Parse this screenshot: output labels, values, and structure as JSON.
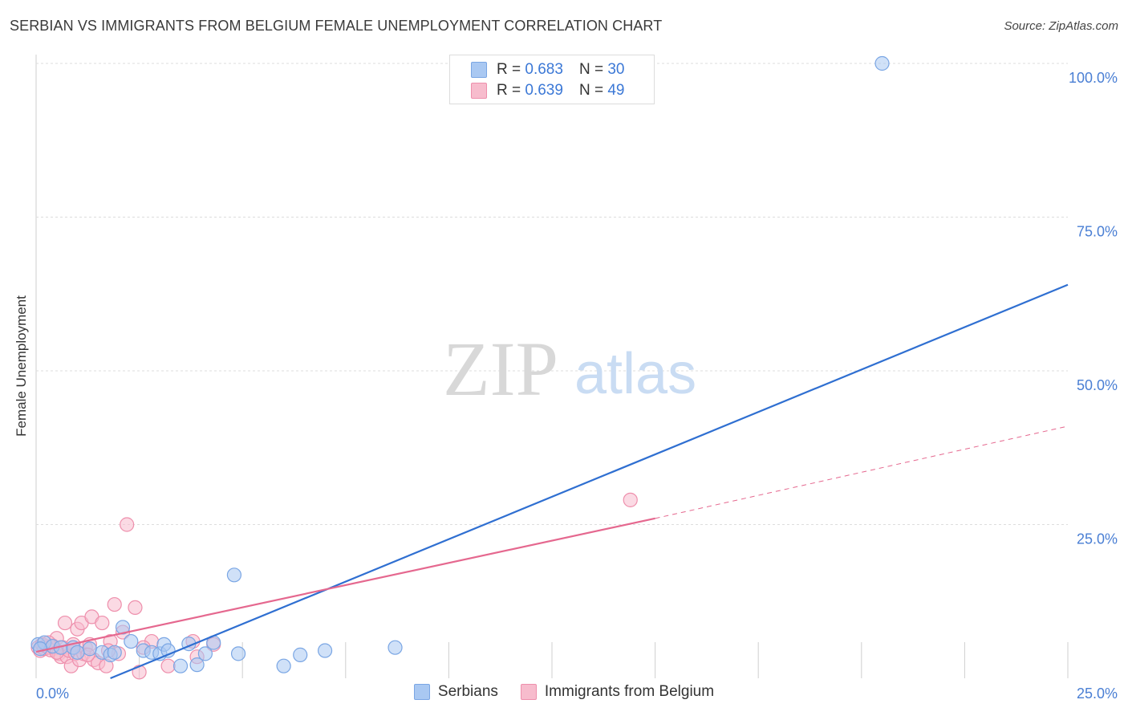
{
  "header": {
    "title": "SERBIAN VS IMMIGRANTS FROM BELGIUM FEMALE UNEMPLOYMENT CORRELATION CHART",
    "source": "Source: ZipAtlas.com"
  },
  "watermark": {
    "zip": "ZIP",
    "atlas": "atlas"
  },
  "legend": {
    "rows": [
      {
        "r_label": "R =",
        "r_value": "0.683",
        "n_label": "N =",
        "n_value": "30"
      },
      {
        "r_label": "R =",
        "r_value": "0.639",
        "n_label": "N =",
        "n_value": "49"
      }
    ]
  },
  "colors": {
    "blue_fill": "#a9c8f2",
    "blue_stroke": "#7aa6e4",
    "blue_line": "#2f6fd1",
    "pink_fill": "#f7bccd",
    "pink_stroke": "#ee8fac",
    "pink_line": "#e5688f",
    "grid": "#dddddd",
    "tick_text": "#4a7fd4"
  },
  "chart_data": {
    "type": "scatter",
    "title": "SERBIAN VS IMMIGRANTS FROM BELGIUM FEMALE UNEMPLOYMENT CORRELATION CHART",
    "xlabel": "",
    "ylabel": "Female Unemployment",
    "xlim": [
      0,
      25
    ],
    "ylim": [
      0,
      100
    ],
    "x_tick_labels": [
      "0.0%",
      "25.0%"
    ],
    "y_tick_labels": [
      "25.0%",
      "50.0%",
      "75.0%",
      "100.0%"
    ],
    "y_ticks": [
      25,
      50,
      75,
      100
    ],
    "grid": true,
    "legend_position": "top-center",
    "series": [
      {
        "name": "Serbians",
        "r": 0.683,
        "n": 30,
        "points": [
          [
            0.05,
            5.5
          ],
          [
            0.2,
            5.8
          ],
          [
            0.4,
            5.2
          ],
          [
            0.6,
            5.0
          ],
          [
            0.9,
            5.0
          ],
          [
            1.3,
            4.8
          ],
          [
            1.6,
            4.2
          ],
          [
            1.8,
            3.8
          ],
          [
            1.9,
            4.2
          ],
          [
            2.1,
            8.3
          ],
          [
            2.3,
            6.0
          ],
          [
            2.6,
            4.5
          ],
          [
            2.8,
            4.2
          ],
          [
            3.0,
            4.0
          ],
          [
            3.1,
            5.5
          ],
          [
            3.2,
            4.5
          ],
          [
            3.5,
            2.0
          ],
          [
            3.7,
            5.6
          ],
          [
            3.9,
            2.2
          ],
          [
            4.1,
            4.0
          ],
          [
            4.3,
            5.8
          ],
          [
            4.8,
            16.8
          ],
          [
            4.9,
            4.0
          ],
          [
            6.0,
            2.0
          ],
          [
            6.4,
            3.8
          ],
          [
            7.0,
            4.5
          ],
          [
            8.7,
            5.0
          ],
          [
            20.5,
            100.0
          ],
          [
            0.1,
            4.8
          ],
          [
            1.0,
            4.2
          ]
        ],
        "trend": {
          "x0": 1.8,
          "y0": 0.0,
          "x1": 25.0,
          "y1": 64.0,
          "style": "solid"
        }
      },
      {
        "name": "Immigrants from Belgium",
        "r": 0.639,
        "n": 49,
        "points": [
          [
            0.05,
            5.0
          ],
          [
            0.1,
            4.5
          ],
          [
            0.15,
            5.5
          ],
          [
            0.2,
            4.8
          ],
          [
            0.25,
            5.2
          ],
          [
            0.3,
            5.0
          ],
          [
            0.35,
            4.6
          ],
          [
            0.4,
            5.3
          ],
          [
            0.45,
            4.9
          ],
          [
            0.5,
            6.5
          ],
          [
            0.55,
            4.0
          ],
          [
            0.6,
            3.5
          ],
          [
            0.65,
            5.0
          ],
          [
            0.7,
            9.0
          ],
          [
            0.75,
            3.5
          ],
          [
            0.8,
            4.5
          ],
          [
            0.85,
            2.0
          ],
          [
            0.9,
            5.5
          ],
          [
            0.95,
            4.0
          ],
          [
            1.0,
            8.0
          ],
          [
            1.05,
            3.0
          ],
          [
            1.1,
            9.0
          ],
          [
            1.15,
            4.0
          ],
          [
            1.2,
            5.0
          ],
          [
            1.3,
            5.5
          ],
          [
            1.35,
            10.0
          ],
          [
            1.4,
            3.0
          ],
          [
            1.5,
            2.5
          ],
          [
            1.6,
            9.0
          ],
          [
            1.7,
            2.0
          ],
          [
            1.8,
            6.0
          ],
          [
            1.9,
            12.0
          ],
          [
            2.0,
            4.0
          ],
          [
            2.1,
            7.5
          ],
          [
            2.2,
            25.0
          ],
          [
            2.4,
            11.5
          ],
          [
            2.5,
            1.0
          ],
          [
            2.8,
            6.0
          ],
          [
            3.2,
            2.0
          ],
          [
            3.8,
            6.0
          ],
          [
            3.9,
            3.5
          ],
          [
            4.3,
            5.5
          ],
          [
            14.4,
            29.0
          ],
          [
            0.3,
            5.8
          ],
          [
            0.5,
            4.2
          ],
          [
            0.9,
            5.0
          ],
          [
            1.25,
            3.8
          ],
          [
            2.6,
            5.0
          ],
          [
            1.75,
            4.5
          ]
        ],
        "trend": {
          "x0": 0.0,
          "y0": 4.3,
          "x1": 15.0,
          "y1": 26.0,
          "style": "solid"
        },
        "trend_extension": {
          "x0": 15.0,
          "y0": 26.0,
          "x1": 25.0,
          "y1": 41.0,
          "style": "dashed"
        }
      }
    ]
  }
}
